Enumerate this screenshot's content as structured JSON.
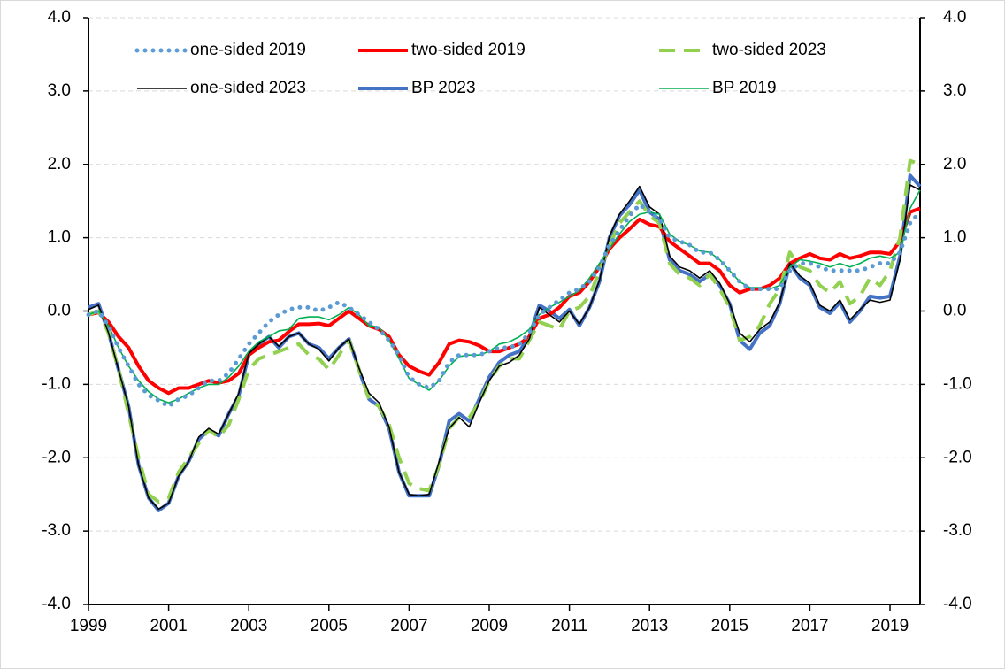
{
  "chart_data": {
    "type": "line",
    "x": [
      1999,
      1999.25,
      1999.5,
      1999.75,
      2000,
      2000.25,
      2000.5,
      2000.75,
      2001,
      2001.25,
      2001.5,
      2001.75,
      2002,
      2002.25,
      2002.5,
      2002.75,
      2003,
      2003.25,
      2003.5,
      2003.75,
      2004,
      2004.25,
      2004.5,
      2004.75,
      2005,
      2005.25,
      2005.5,
      2005.75,
      2006,
      2006.25,
      2006.5,
      2006.75,
      2007,
      2007.25,
      2007.5,
      2007.75,
      2008,
      2008.25,
      2008.5,
      2008.75,
      2009,
      2009.25,
      2009.5,
      2009.75,
      2010,
      2010.25,
      2010.5,
      2010.75,
      2011,
      2011.25,
      2011.5,
      2011.75,
      2012,
      2012.25,
      2012.5,
      2012.75,
      2013,
      2013.25,
      2013.5,
      2013.75,
      2014,
      2014.25,
      2014.5,
      2014.75,
      2015,
      2015.25,
      2015.5,
      2015.75,
      2016,
      2016.25,
      2016.5,
      2016.75,
      2017,
      2017.25,
      2017.5,
      2017.75,
      2018,
      2018.25,
      2018.5,
      2018.75,
      2019,
      2019.25,
      2019.5,
      2019.75
    ],
    "xlim": [
      1999,
      2019.75
    ],
    "xticks": [
      1999,
      2001,
      2003,
      2005,
      2007,
      2009,
      2011,
      2013,
      2015,
      2017,
      2019
    ],
    "ylim": [
      -4,
      4
    ],
    "yticks": [
      {
        "value": -4,
        "label": "-4.0"
      },
      {
        "value": -3,
        "label": "-3.0"
      },
      {
        "value": -2,
        "label": "-2.0"
      },
      {
        "value": -1,
        "label": "-1.0"
      },
      {
        "value": 0,
        "label": "0.0"
      },
      {
        "value": 1,
        "label": "1.0"
      },
      {
        "value": 2,
        "label": "2.0"
      },
      {
        "value": 3,
        "label": "3.0"
      },
      {
        "value": 4,
        "label": "4.0"
      }
    ],
    "y2lim": [
      -4,
      4
    ],
    "y2ticks": [
      {
        "value": -4,
        "label": "-4.0"
      },
      {
        "value": -3,
        "label": "-3.0"
      },
      {
        "value": -2,
        "label": "-2.0"
      },
      {
        "value": -1,
        "label": "-1.0"
      },
      {
        "value": 0,
        "label": "0.0"
      },
      {
        "value": 1,
        "label": "1.0"
      },
      {
        "value": 2,
        "label": "2.0"
      },
      {
        "value": 3,
        "label": "3.0"
      },
      {
        "value": 4,
        "label": "4.0"
      }
    ],
    "grid": true,
    "legend": "top",
    "series": [
      {
        "name": "one-sided 2019",
        "color": "#5b9bd5",
        "style": "dotted",
        "weight": "thick",
        "values": [
          -0.05,
          0.0,
          -0.2,
          -0.5,
          -0.75,
          -1.0,
          -1.15,
          -1.22,
          -1.3,
          -1.2,
          -1.15,
          -1.05,
          -0.95,
          -0.95,
          -0.85,
          -0.65,
          -0.45,
          -0.3,
          -0.15,
          -0.05,
          0.02,
          0.05,
          0.05,
          0.0,
          0.05,
          0.12,
          0.05,
          -0.05,
          -0.15,
          -0.25,
          -0.4,
          -0.6,
          -0.9,
          -1.0,
          -1.05,
          -0.95,
          -0.7,
          -0.6,
          -0.6,
          -0.6,
          -0.55,
          -0.5,
          -0.5,
          -0.45,
          -0.3,
          -0.05,
          0.05,
          0.15,
          0.25,
          0.3,
          0.4,
          0.6,
          0.9,
          1.1,
          1.3,
          1.45,
          1.35,
          1.25,
          1.0,
          0.95,
          0.9,
          0.8,
          0.8,
          0.7,
          0.55,
          0.4,
          0.3,
          0.3,
          0.3,
          0.3,
          0.55,
          0.65,
          0.65,
          0.6,
          0.55,
          0.55,
          0.55,
          0.55,
          0.6,
          0.65,
          0.65,
          0.8,
          1.2,
          1.35
        ]
      },
      {
        "name": "two-sided 2019",
        "color": "#ff0000",
        "style": "solid",
        "weight": "thick",
        "values": [
          -0.05,
          -0.02,
          -0.15,
          -0.35,
          -0.5,
          -0.75,
          -0.95,
          -1.05,
          -1.12,
          -1.05,
          -1.05,
          -1.0,
          -0.95,
          -0.98,
          -0.95,
          -0.85,
          -0.6,
          -0.5,
          -0.42,
          -0.4,
          -0.28,
          -0.18,
          -0.18,
          -0.17,
          -0.2,
          -0.1,
          0.0,
          -0.1,
          -0.2,
          -0.25,
          -0.35,
          -0.6,
          -0.75,
          -0.82,
          -0.87,
          -0.7,
          -0.45,
          -0.4,
          -0.42,
          -0.47,
          -0.55,
          -0.55,
          -0.5,
          -0.45,
          -0.35,
          -0.1,
          -0.05,
          0.05,
          0.2,
          0.25,
          0.4,
          0.6,
          0.85,
          1.0,
          1.12,
          1.25,
          1.18,
          1.15,
          0.95,
          0.85,
          0.75,
          0.65,
          0.65,
          0.55,
          0.35,
          0.25,
          0.3,
          0.3,
          0.35,
          0.45,
          0.65,
          0.72,
          0.78,
          0.72,
          0.7,
          0.78,
          0.72,
          0.75,
          0.8,
          0.8,
          0.78,
          0.95,
          1.35,
          1.4
        ]
      },
      {
        "name": "two-sided 2023",
        "color": "#92d050",
        "style": "dashed",
        "weight": "thick",
        "values": [
          -0.05,
          0.0,
          -0.3,
          -0.8,
          -1.4,
          -2.0,
          -2.5,
          -2.6,
          -2.55,
          -2.2,
          -2.0,
          -1.8,
          -1.62,
          -1.72,
          -1.55,
          -1.2,
          -0.8,
          -0.65,
          -0.6,
          -0.55,
          -0.5,
          -0.45,
          -0.6,
          -0.65,
          -0.8,
          -0.6,
          -0.4,
          -0.8,
          -1.2,
          -1.3,
          -1.55,
          -2.0,
          -2.35,
          -2.42,
          -2.45,
          -2.1,
          -1.6,
          -1.45,
          -1.45,
          -1.25,
          -0.95,
          -0.75,
          -0.65,
          -0.65,
          -0.4,
          -0.15,
          -0.2,
          -0.25,
          0.0,
          0.05,
          0.2,
          0.55,
          0.9,
          1.2,
          1.35,
          1.5,
          1.3,
          1.2,
          0.65,
          0.5,
          0.45,
          0.35,
          0.5,
          0.3,
          0.05,
          -0.4,
          -0.35,
          -0.2,
          0.1,
          0.3,
          0.8,
          0.6,
          0.55,
          0.35,
          0.25,
          0.4,
          0.1,
          0.2,
          0.45,
          0.35,
          0.55,
          1.0,
          2.05,
          2.0
        ]
      },
      {
        "name": "one-sided 2023",
        "color": "#000000",
        "style": "solid",
        "weight": "thin",
        "values": [
          0.02,
          0.08,
          -0.3,
          -0.8,
          -1.3,
          -2.1,
          -2.55,
          -2.7,
          -2.62,
          -2.25,
          -2.05,
          -1.72,
          -1.6,
          -1.68,
          -1.4,
          -1.12,
          -0.58,
          -0.45,
          -0.35,
          -0.48,
          -0.35,
          -0.3,
          -0.45,
          -0.52,
          -0.68,
          -0.5,
          -0.38,
          -0.78,
          -1.12,
          -1.25,
          -1.58,
          -2.2,
          -2.5,
          -2.52,
          -2.5,
          -2.05,
          -1.6,
          -1.45,
          -1.58,
          -1.25,
          -0.95,
          -0.75,
          -0.7,
          -0.6,
          -0.38,
          0.05,
          -0.05,
          -0.15,
          0.0,
          -0.18,
          0.05,
          0.42,
          1.02,
          1.32,
          1.5,
          1.7,
          1.42,
          1.32,
          0.75,
          0.6,
          0.55,
          0.45,
          0.55,
          0.38,
          0.1,
          -0.3,
          -0.42,
          -0.25,
          -0.15,
          0.12,
          0.65,
          0.48,
          0.38,
          0.08,
          0.0,
          0.15,
          -0.12,
          0.02,
          0.15,
          0.12,
          0.15,
          0.7,
          1.72,
          1.65
        ]
      },
      {
        "name": "BP 2023",
        "color": "#4472c4",
        "style": "solid",
        "weight": "thick",
        "values": [
          0.05,
          0.1,
          -0.3,
          -0.8,
          -1.3,
          -2.1,
          -2.55,
          -2.72,
          -2.62,
          -2.25,
          -2.05,
          -1.75,
          -1.62,
          -1.7,
          -1.4,
          -1.15,
          -0.6,
          -0.45,
          -0.35,
          -0.5,
          -0.35,
          -0.3,
          -0.45,
          -0.5,
          -0.65,
          -0.5,
          -0.38,
          -0.8,
          -1.2,
          -1.3,
          -1.6,
          -2.2,
          -2.52,
          -2.52,
          -2.52,
          -2.1,
          -1.5,
          -1.4,
          -1.5,
          -1.2,
          -0.9,
          -0.7,
          -0.6,
          -0.55,
          -0.35,
          0.08,
          0.0,
          -0.1,
          0.02,
          -0.2,
          0.05,
          0.4,
          1.0,
          1.3,
          1.45,
          1.65,
          1.35,
          1.25,
          0.7,
          0.55,
          0.5,
          0.4,
          0.5,
          0.35,
          0.1,
          -0.4,
          -0.52,
          -0.3,
          -0.2,
          0.1,
          0.65,
          0.45,
          0.35,
          0.05,
          -0.03,
          0.12,
          -0.15,
          0.0,
          0.2,
          0.18,
          0.2,
          0.75,
          1.85,
          1.7
        ]
      },
      {
        "name": "BP 2019",
        "color": "#00b050",
        "style": "solid",
        "weight": "thin",
        "values": [
          -0.05,
          0.0,
          -0.2,
          -0.5,
          -0.75,
          -0.95,
          -1.1,
          -1.2,
          -1.25,
          -1.2,
          -1.12,
          -1.05,
          -1.0,
          -1.0,
          -0.9,
          -0.75,
          -0.55,
          -0.42,
          -0.35,
          -0.27,
          -0.25,
          -0.1,
          -0.08,
          -0.08,
          -0.12,
          -0.05,
          0.05,
          -0.05,
          -0.2,
          -0.22,
          -0.4,
          -0.65,
          -0.92,
          -1.0,
          -1.08,
          -0.95,
          -0.75,
          -0.62,
          -0.6,
          -0.6,
          -0.55,
          -0.45,
          -0.42,
          -0.35,
          -0.25,
          -0.05,
          0.05,
          0.12,
          0.2,
          0.28,
          0.45,
          0.65,
          0.85,
          1.05,
          1.22,
          1.32,
          1.35,
          1.32,
          1.05,
          0.95,
          0.9,
          0.82,
          0.8,
          0.7,
          0.55,
          0.4,
          0.32,
          0.32,
          0.3,
          0.35,
          0.6,
          0.7,
          0.68,
          0.65,
          0.6,
          0.65,
          0.6,
          0.65,
          0.72,
          0.75,
          0.72,
          0.8,
          1.4,
          1.65
        ]
      }
    ]
  }
}
